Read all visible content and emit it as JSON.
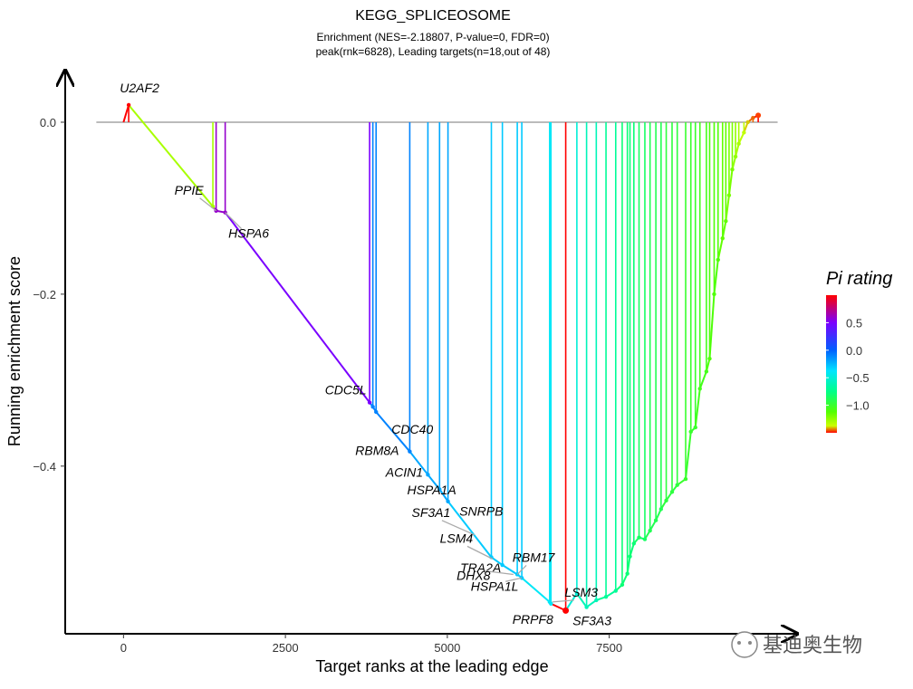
{
  "chart_data": {
    "type": "line",
    "title": "KEGG_SPLICEOSOME",
    "subtitle_line1": "Enrichment (NES=-2.18807, P-value=0, FDR=0)",
    "subtitle_line2": "peak(rnk=6828), Leading targets(n=18,out of 48)",
    "xlabel": "Target ranks at the leading edge",
    "ylabel": "Running enrichment score",
    "xlim": [
      -900,
      10400
    ],
    "ylim": [
      -0.595,
      0.06
    ],
    "x_ticks": [
      0,
      2500,
      5000,
      7500
    ],
    "x_tick_labels": [
      "0",
      "2500",
      "5000",
      "7500"
    ],
    "y_ticks": [
      0.0,
      -0.2,
      -0.4
    ],
    "y_tick_labels": [
      "0.0",
      "−0.2",
      "−0.4"
    ],
    "baseline": 0,
    "grid": false,
    "legend": {
      "title": "Pi rating",
      "position": "right",
      "ticks": [
        0.5,
        0.0,
        -0.5,
        -1.0
      ],
      "tick_labels": [
        "0.5",
        "0.0",
        "−0.5",
        "−1.0"
      ],
      "range": [
        1.0,
        -1.5
      ],
      "colors": [
        "#ff0000",
        "#7a00ff",
        "#0060ff",
        "#00e5ff",
        "#00ff88",
        "#55ff00",
        "#ccff00",
        "#ff0000"
      ]
    },
    "peak": {
      "x": 6828,
      "y": -0.568,
      "color": "#ff0000"
    },
    "end_point": {
      "x": 9800,
      "y": 0.008,
      "color": "#ff4000"
    },
    "labels": [
      {
        "gene": "U2AF2",
        "x": 80,
        "y": 0.02
      },
      {
        "gene": "PPIE",
        "x": 1430,
        "y": -0.103
      },
      {
        "gene": "HSPA6",
        "x": 1570,
        "y": -0.105
      },
      {
        "gene": "CDC5L",
        "x": 3850,
        "y": -0.331
      },
      {
        "gene": "CDC40",
        "x": 3900,
        "y": -0.337
      },
      {
        "gene": "RBM8A",
        "x": 4420,
        "y": -0.383
      },
      {
        "gene": "ACIN1",
        "x": 4700,
        "y": -0.41
      },
      {
        "gene": "HSPA1A",
        "x": 5010,
        "y": -0.441
      },
      {
        "gene": "SNRPB",
        "x": 5300,
        "y": -0.47
      },
      {
        "gene": "SF3A1",
        "x": 5420,
        "y": -0.48
      },
      {
        "gene": "LSM4",
        "x": 5700,
        "y": -0.508
      },
      {
        "gene": "TRA2A",
        "x": 5850,
        "y": -0.515
      },
      {
        "gene": "RBM17",
        "x": 6080,
        "y": -0.526
      },
      {
        "gene": "DHX8",
        "x": 6020,
        "y": -0.526
      },
      {
        "gene": "HSPA1L",
        "x": 6150,
        "y": -0.53
      },
      {
        "gene": "LSM3",
        "x": 6620,
        "y": -0.558
      },
      {
        "gene": "PRPF8",
        "x": 6600,
        "y": -0.56
      },
      {
        "gene": "SF3A3",
        "x": 7150,
        "y": -0.564
      }
    ],
    "curve": [
      {
        "x": 0,
        "y": 0.0,
        "score": -1.5
      },
      {
        "x": 80,
        "y": 0.02,
        "score": -1.5
      },
      {
        "x": 1380,
        "y": -0.098,
        "score": -1.3
      },
      {
        "x": 1430,
        "y": -0.103,
        "score": 0.6
      },
      {
        "x": 1570,
        "y": -0.105,
        "score": 0.6
      },
      {
        "x": 3800,
        "y": -0.326,
        "score": 0.5
      },
      {
        "x": 3850,
        "y": -0.331,
        "score": -0.1
      },
      {
        "x": 3900,
        "y": -0.337,
        "score": -0.1
      },
      {
        "x": 4420,
        "y": -0.383,
        "score": -0.1
      },
      {
        "x": 4700,
        "y": -0.41,
        "score": -0.2
      },
      {
        "x": 4880,
        "y": -0.427,
        "score": -0.2
      },
      {
        "x": 5010,
        "y": -0.441,
        "score": -0.2
      },
      {
        "x": 5680,
        "y": -0.506,
        "score": -0.3
      },
      {
        "x": 5850,
        "y": -0.515,
        "score": -0.3
      },
      {
        "x": 6080,
        "y": -0.526,
        "score": -0.3
      },
      {
        "x": 6150,
        "y": -0.53,
        "score": -0.3
      },
      {
        "x": 6580,
        "y": -0.558,
        "score": -0.4
      },
      {
        "x": 6600,
        "y": -0.56,
        "score": -0.4
      },
      {
        "x": 6828,
        "y": -0.568,
        "score": -1.5
      },
      {
        "x": 7000,
        "y": -0.548,
        "score": -0.5
      },
      {
        "x": 7150,
        "y": -0.564,
        "score": -0.6
      },
      {
        "x": 7300,
        "y": -0.556,
        "score": -0.6
      },
      {
        "x": 7450,
        "y": -0.552,
        "score": -0.7
      },
      {
        "x": 7600,
        "y": -0.545,
        "score": -0.7
      },
      {
        "x": 7700,
        "y": -0.538,
        "score": -0.8
      },
      {
        "x": 7780,
        "y": -0.525,
        "score": -0.8
      },
      {
        "x": 7820,
        "y": -0.505,
        "score": -0.8
      },
      {
        "x": 7880,
        "y": -0.49,
        "score": -0.8
      },
      {
        "x": 7960,
        "y": -0.483,
        "score": -0.85
      },
      {
        "x": 8050,
        "y": -0.485,
        "score": -0.85
      },
      {
        "x": 8130,
        "y": -0.475,
        "score": -0.9
      },
      {
        "x": 8220,
        "y": -0.463,
        "score": -0.9
      },
      {
        "x": 8300,
        "y": -0.45,
        "score": -0.9
      },
      {
        "x": 8380,
        "y": -0.44,
        "score": -0.95
      },
      {
        "x": 8470,
        "y": -0.43,
        "score": -0.95
      },
      {
        "x": 8550,
        "y": -0.422,
        "score": -0.95
      },
      {
        "x": 8680,
        "y": -0.415,
        "score": -1.0
      },
      {
        "x": 8760,
        "y": -0.36,
        "score": -1.0
      },
      {
        "x": 8830,
        "y": -0.355,
        "score": -1.0
      },
      {
        "x": 8900,
        "y": -0.31,
        "score": -1.05
      },
      {
        "x": 9000,
        "y": -0.29,
        "score": -1.05
      },
      {
        "x": 9050,
        "y": -0.275,
        "score": -1.1
      },
      {
        "x": 9120,
        "y": -0.2,
        "score": -1.1
      },
      {
        "x": 9180,
        "y": -0.16,
        "score": -1.1
      },
      {
        "x": 9250,
        "y": -0.135,
        "score": -1.15
      },
      {
        "x": 9300,
        "y": -0.115,
        "score": -1.15
      },
      {
        "x": 9350,
        "y": -0.085,
        "score": -1.2
      },
      {
        "x": 9400,
        "y": -0.055,
        "score": -1.2
      },
      {
        "x": 9450,
        "y": -0.04,
        "score": -1.25
      },
      {
        "x": 9500,
        "y": -0.025,
        "score": -1.3
      },
      {
        "x": 9580,
        "y": -0.012,
        "score": -1.35
      },
      {
        "x": 9640,
        "y": 0.0,
        "score": -1.4
      },
      {
        "x": 9720,
        "y": 0.005,
        "score": -1.45
      },
      {
        "x": 9800,
        "y": 0.008,
        "score": -1.5
      }
    ]
  },
  "watermark": "基迪奥生物"
}
